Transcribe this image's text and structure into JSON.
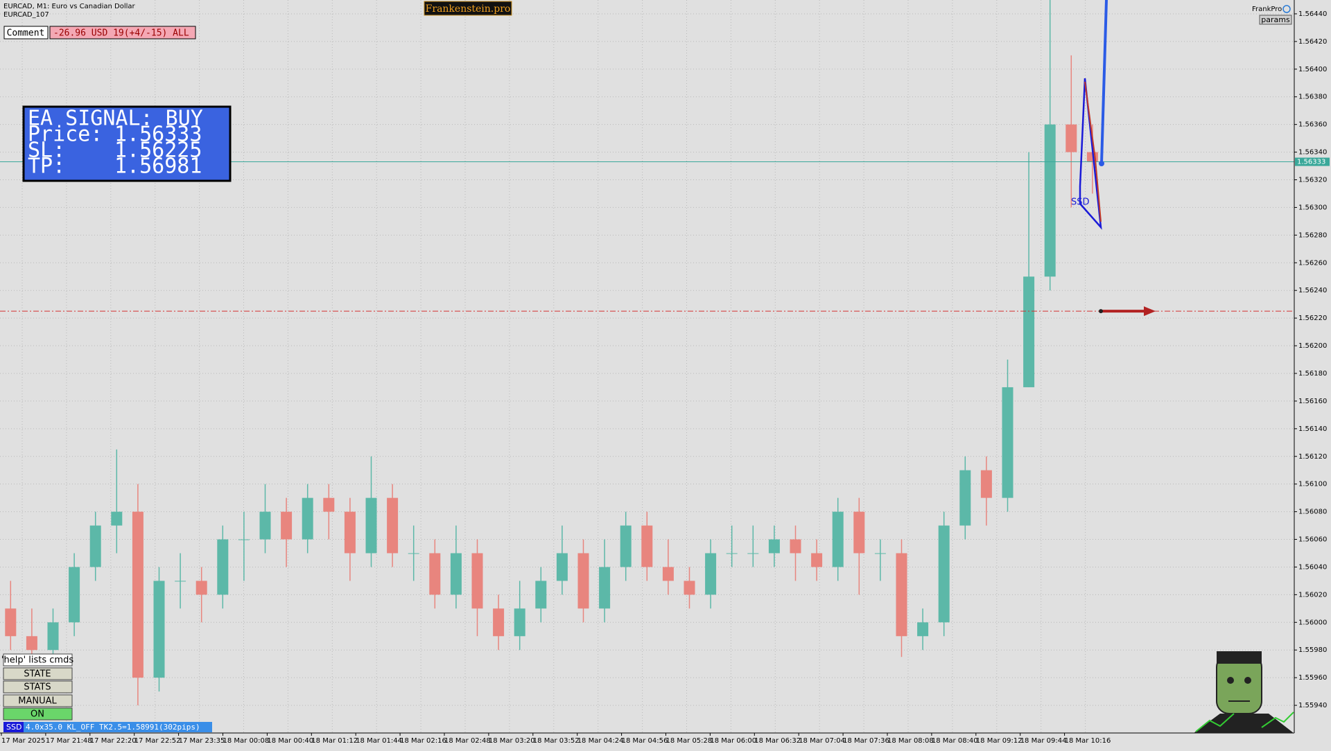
{
  "header": {
    "symbol": "EURCAD, M1:  Euro vs Canadian Dollar",
    "template": "EURCAD_107",
    "brand": "Frankenstein.pro",
    "user": "FrankPro",
    "params_button": "params"
  },
  "comment": {
    "label": "Comment",
    "text": "-26.96 USD 19(+4/-15) ALL"
  },
  "signal_panel": {
    "title": "EA SIGNAL: BUY",
    "rows": [
      {
        "label": "Price:",
        "value": 1.56333
      },
      {
        "label": "SL:",
        "value": 1.56225
      },
      {
        "label": "TP:",
        "value": 1.56981
      }
    ]
  },
  "buttons": [
    "'help' lists cmds",
    "STATE",
    "STATS",
    "MANUAL",
    "ON"
  ],
  "status_bar": {
    "tag": "SSD",
    "text": "4.0x35.0 KL_OFF TK2.5=1.58991(302pips)"
  },
  "chart_data": {
    "type": "candlestick",
    "up_color": "#5cb8a8",
    "down_color": "#e8857e",
    "grid": true,
    "ylim": [
      1.5592,
      1.5645
    ],
    "yticks": [
      {
        "value": 1.5594,
        "label": "1.55940"
      },
      {
        "value": 1.5596,
        "label": "1.55960"
      },
      {
        "value": 1.5598,
        "label": "1.55980"
      },
      {
        "value": 1.56,
        "label": "1.56000"
      },
      {
        "value": 1.5602,
        "label": "1.56020"
      },
      {
        "value": 1.5604,
        "label": "1.56040"
      },
      {
        "value": 1.5606,
        "label": "1.56060"
      },
      {
        "value": 1.5608,
        "label": "1.56080"
      },
      {
        "value": 1.561,
        "label": "1.56100"
      },
      {
        "value": 1.5612,
        "label": "1.56120"
      },
      {
        "value": 1.5614,
        "label": "1.56140"
      },
      {
        "value": 1.5616,
        "label": "1.56160"
      },
      {
        "value": 1.5618,
        "label": "1.56180"
      },
      {
        "value": 1.562,
        "label": "1.56200"
      },
      {
        "value": 1.5622,
        "label": "1.56220"
      },
      {
        "value": 1.5624,
        "label": "1.56240"
      },
      {
        "value": 1.5626,
        "label": "1.56260"
      },
      {
        "value": 1.5628,
        "label": "1.56280"
      },
      {
        "value": 1.563,
        "label": "1.56300"
      },
      {
        "value": 1.5632,
        "label": "1.56320"
      },
      {
        "value": 1.5634,
        "label": "1.56340"
      },
      {
        "value": 1.5636,
        "label": "1.56360"
      },
      {
        "value": 1.5638,
        "label": "1.56380"
      },
      {
        "value": 1.564,
        "label": "1.56400"
      },
      {
        "value": 1.5642,
        "label": "1.56420"
      },
      {
        "value": 1.5644,
        "label": "1.56440"
      }
    ],
    "x_labels": [
      "17 Mar 2025",
      "17 Mar 21:48",
      "17 Mar 22:20",
      "17 Mar 22:52",
      "17 Mar 23:35",
      "18 Mar 00:08",
      "18 Mar 00:40",
      "18 Mar 01:12",
      "18 Mar 01:44",
      "18 Mar 02:16",
      "18 Mar 02:48",
      "18 Mar 03:20",
      "18 Mar 03:52",
      "18 Mar 04:24",
      "18 Mar 04:56",
      "18 Mar 05:28",
      "18 Mar 06:00",
      "18 Mar 06:32",
      "18 Mar 07:04",
      "18 Mar 07:36",
      "18 Mar 08:08",
      "18 Mar 08:40",
      "18 Mar 09:12",
      "18 Mar 09:44",
      "18 Mar 10:16"
    ],
    "candles": [
      [
        1.5601,
        1.5603,
        1.5598,
        1.5599
      ],
      [
        1.5599,
        1.5601,
        1.5597,
        1.5598
      ],
      [
        1.5598,
        1.5601,
        1.5597,
        1.56
      ],
      [
        1.56,
        1.5605,
        1.5599,
        1.5604
      ],
      [
        1.5604,
        1.5608,
        1.5603,
        1.5607
      ],
      [
        1.5607,
        1.56125,
        1.5605,
        1.5608
      ],
      [
        1.5608,
        1.561,
        1.5594,
        1.5596
      ],
      [
        1.5596,
        1.5604,
        1.5595,
        1.5603
      ],
      [
        1.5603,
        1.5605,
        1.5601,
        1.5603
      ],
      [
        1.5603,
        1.5604,
        1.56,
        1.5602
      ],
      [
        1.5602,
        1.5607,
        1.5601,
        1.5606
      ],
      [
        1.5606,
        1.5608,
        1.5603,
        1.5606
      ],
      [
        1.5606,
        1.561,
        1.5605,
        1.5608
      ],
      [
        1.5608,
        1.5609,
        1.5604,
        1.5606
      ],
      [
        1.5606,
        1.561,
        1.5605,
        1.5609
      ],
      [
        1.5609,
        1.561,
        1.5606,
        1.5608
      ],
      [
        1.5608,
        1.5609,
        1.5603,
        1.5605
      ],
      [
        1.5605,
        1.5612,
        1.5604,
        1.5609
      ],
      [
        1.5609,
        1.561,
        1.5604,
        1.5605
      ],
      [
        1.5605,
        1.5607,
        1.5603,
        1.5605
      ],
      [
        1.5605,
        1.5606,
        1.5601,
        1.5602
      ],
      [
        1.5602,
        1.5607,
        1.5601,
        1.5605
      ],
      [
        1.5605,
        1.5606,
        1.5599,
        1.5601
      ],
      [
        1.5601,
        1.5602,
        1.5598,
        1.5599
      ],
      [
        1.5599,
        1.5603,
        1.5598,
        1.5601
      ],
      [
        1.5601,
        1.5604,
        1.56,
        1.5603
      ],
      [
        1.5603,
        1.5607,
        1.5602,
        1.5605
      ],
      [
        1.5605,
        1.5606,
        1.56,
        1.5601
      ],
      [
        1.5601,
        1.5606,
        1.56,
        1.5604
      ],
      [
        1.5604,
        1.5608,
        1.5603,
        1.5607
      ],
      [
        1.5607,
        1.5608,
        1.5603,
        1.5604
      ],
      [
        1.5604,
        1.5606,
        1.5602,
        1.5603
      ],
      [
        1.5603,
        1.5604,
        1.5601,
        1.5602
      ],
      [
        1.5602,
        1.5606,
        1.5601,
        1.5605
      ],
      [
        1.5605,
        1.5607,
        1.5604,
        1.5605
      ],
      [
        1.5605,
        1.5607,
        1.5604,
        1.5605
      ],
      [
        1.5605,
        1.5607,
        1.5604,
        1.5606
      ],
      [
        1.5606,
        1.5607,
        1.5603,
        1.5605
      ],
      [
        1.5605,
        1.5606,
        1.5603,
        1.5604
      ],
      [
        1.5604,
        1.5609,
        1.5603,
        1.5608
      ],
      [
        1.5608,
        1.5609,
        1.5602,
        1.5605
      ],
      [
        1.5605,
        1.5606,
        1.5603,
        1.5605
      ],
      [
        1.5605,
        1.5606,
        1.55975,
        1.5599
      ],
      [
        1.5599,
        1.5601,
        1.5598,
        1.56
      ],
      [
        1.56,
        1.5608,
        1.5599,
        1.5607
      ],
      [
        1.5607,
        1.5612,
        1.5606,
        1.5611
      ],
      [
        1.5611,
        1.5612,
        1.5607,
        1.5609
      ],
      [
        1.5609,
        1.5619,
        1.5608,
        1.5617
      ],
      [
        1.5617,
        1.5634,
        1.5617,
        1.5625
      ],
      [
        1.5625,
        1.5645,
        1.5624,
        1.5636
      ],
      [
        1.5636,
        1.5641,
        1.563,
        1.5634
      ],
      [
        1.5634,
        1.5636,
        1.5631,
        1.56333
      ]
    ],
    "bid_line": 1.56333,
    "bid_color": "#3aa89a",
    "stop_line": 1.56225,
    "stop_color": "#d32f2f",
    "indicator_label": "SSD"
  }
}
